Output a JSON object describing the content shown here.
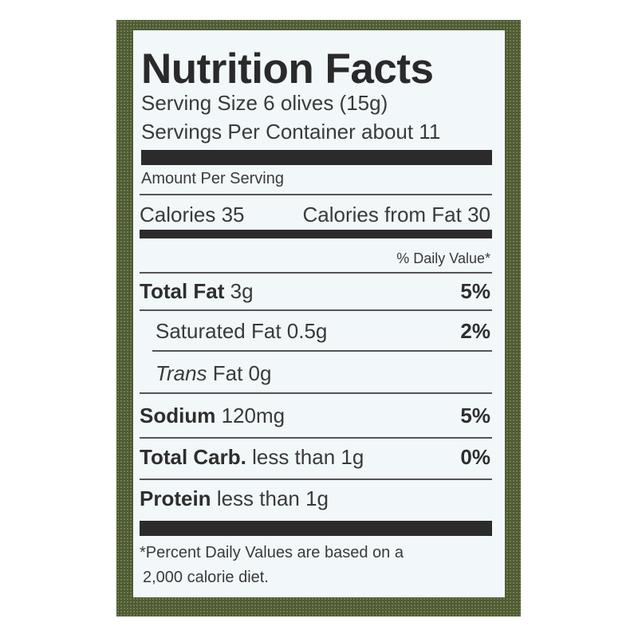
{
  "title": "Nutrition Facts",
  "serving_size": "Serving Size 6 olives (15g)",
  "servings_per_container": "Servings Per Container about 11",
  "amount_per_serving": "Amount Per Serving",
  "calories": "Calories 35",
  "calories_from_fat": "Calories from Fat 30",
  "daily_value_header": "% Daily Value*",
  "nutrients": [
    {
      "name": "Total Fat",
      "amount": "3g",
      "dv": "5%",
      "bold": true
    },
    {
      "name": "Saturated Fat",
      "amount": "0.5g",
      "dv": "2%",
      "bold": false
    },
    {
      "name": "Trans",
      "amount": "Fat 0g",
      "dv": "",
      "bold": false
    },
    {
      "name": "Sodium",
      "amount": "120mg",
      "dv": "5%",
      "bold": true
    },
    {
      "name": "Total Carb.",
      "amount": "less than 1g",
      "dv": "0%",
      "bold": true
    },
    {
      "name": "Protein",
      "amount": "less than 1g",
      "dv": "",
      "bold": true
    }
  ],
  "footnote_line1": "*Percent Daily Values are based on a",
  "footnote_line2": "2,000 calorie diet.",
  "colors": {
    "background": "#4f5a36",
    "label": "#f2f8fa",
    "text": "#3a3a3a"
  }
}
